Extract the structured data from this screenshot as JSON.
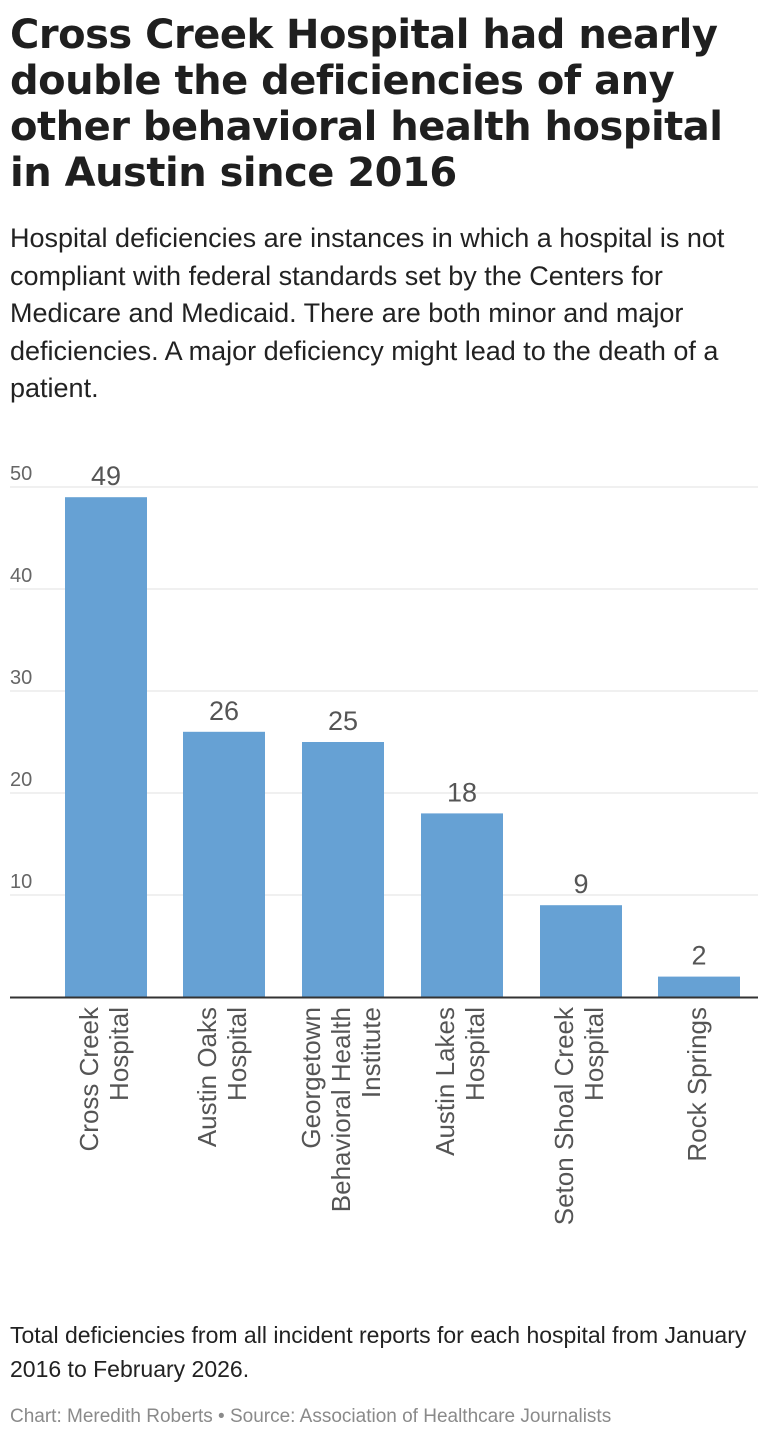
{
  "title": "Cross Creek Hospital had nearly double the deficiencies of any other behavioral health hospital in Austin since 2016",
  "subtitle": "Hospital deficiencies are instances in which a hospital is not compliant with federal standards set by the Centers for Medicare and Medicaid. There are both minor and major deficiencies. A major deficiency might lead to the death of a patient.",
  "notes": "Total deficiencies from all incident reports for each hospital from January 2016 to February 2026.",
  "footer": "Chart: Meredith Roberts • Source: Association of Healthcare Journalists",
  "colors": {
    "bar": "#66a1d4",
    "grid": "#e2e2e2",
    "axis": "#333333"
  },
  "chart_data": {
    "type": "bar",
    "categories": [
      [
        "Cross Creek",
        "Hospital"
      ],
      [
        "Austin Oaks",
        "Hospital"
      ],
      [
        "Georgetown",
        "Behavioral Health",
        "Institute"
      ],
      [
        "Austin Lakes",
        "Hospital"
      ],
      [
        "Seton Shoal Creek",
        "Hospital"
      ],
      [
        "Rock Springs"
      ]
    ],
    "values": [
      49,
      26,
      25,
      18,
      9,
      2
    ],
    "data_labels": [
      "49",
      "26",
      "25",
      "18",
      "9",
      "2"
    ],
    "yticks": [
      "10",
      "20",
      "30",
      "40",
      "50"
    ],
    "ylim": [
      0,
      50
    ],
    "grid": true,
    "xlabel": "",
    "ylabel": ""
  }
}
